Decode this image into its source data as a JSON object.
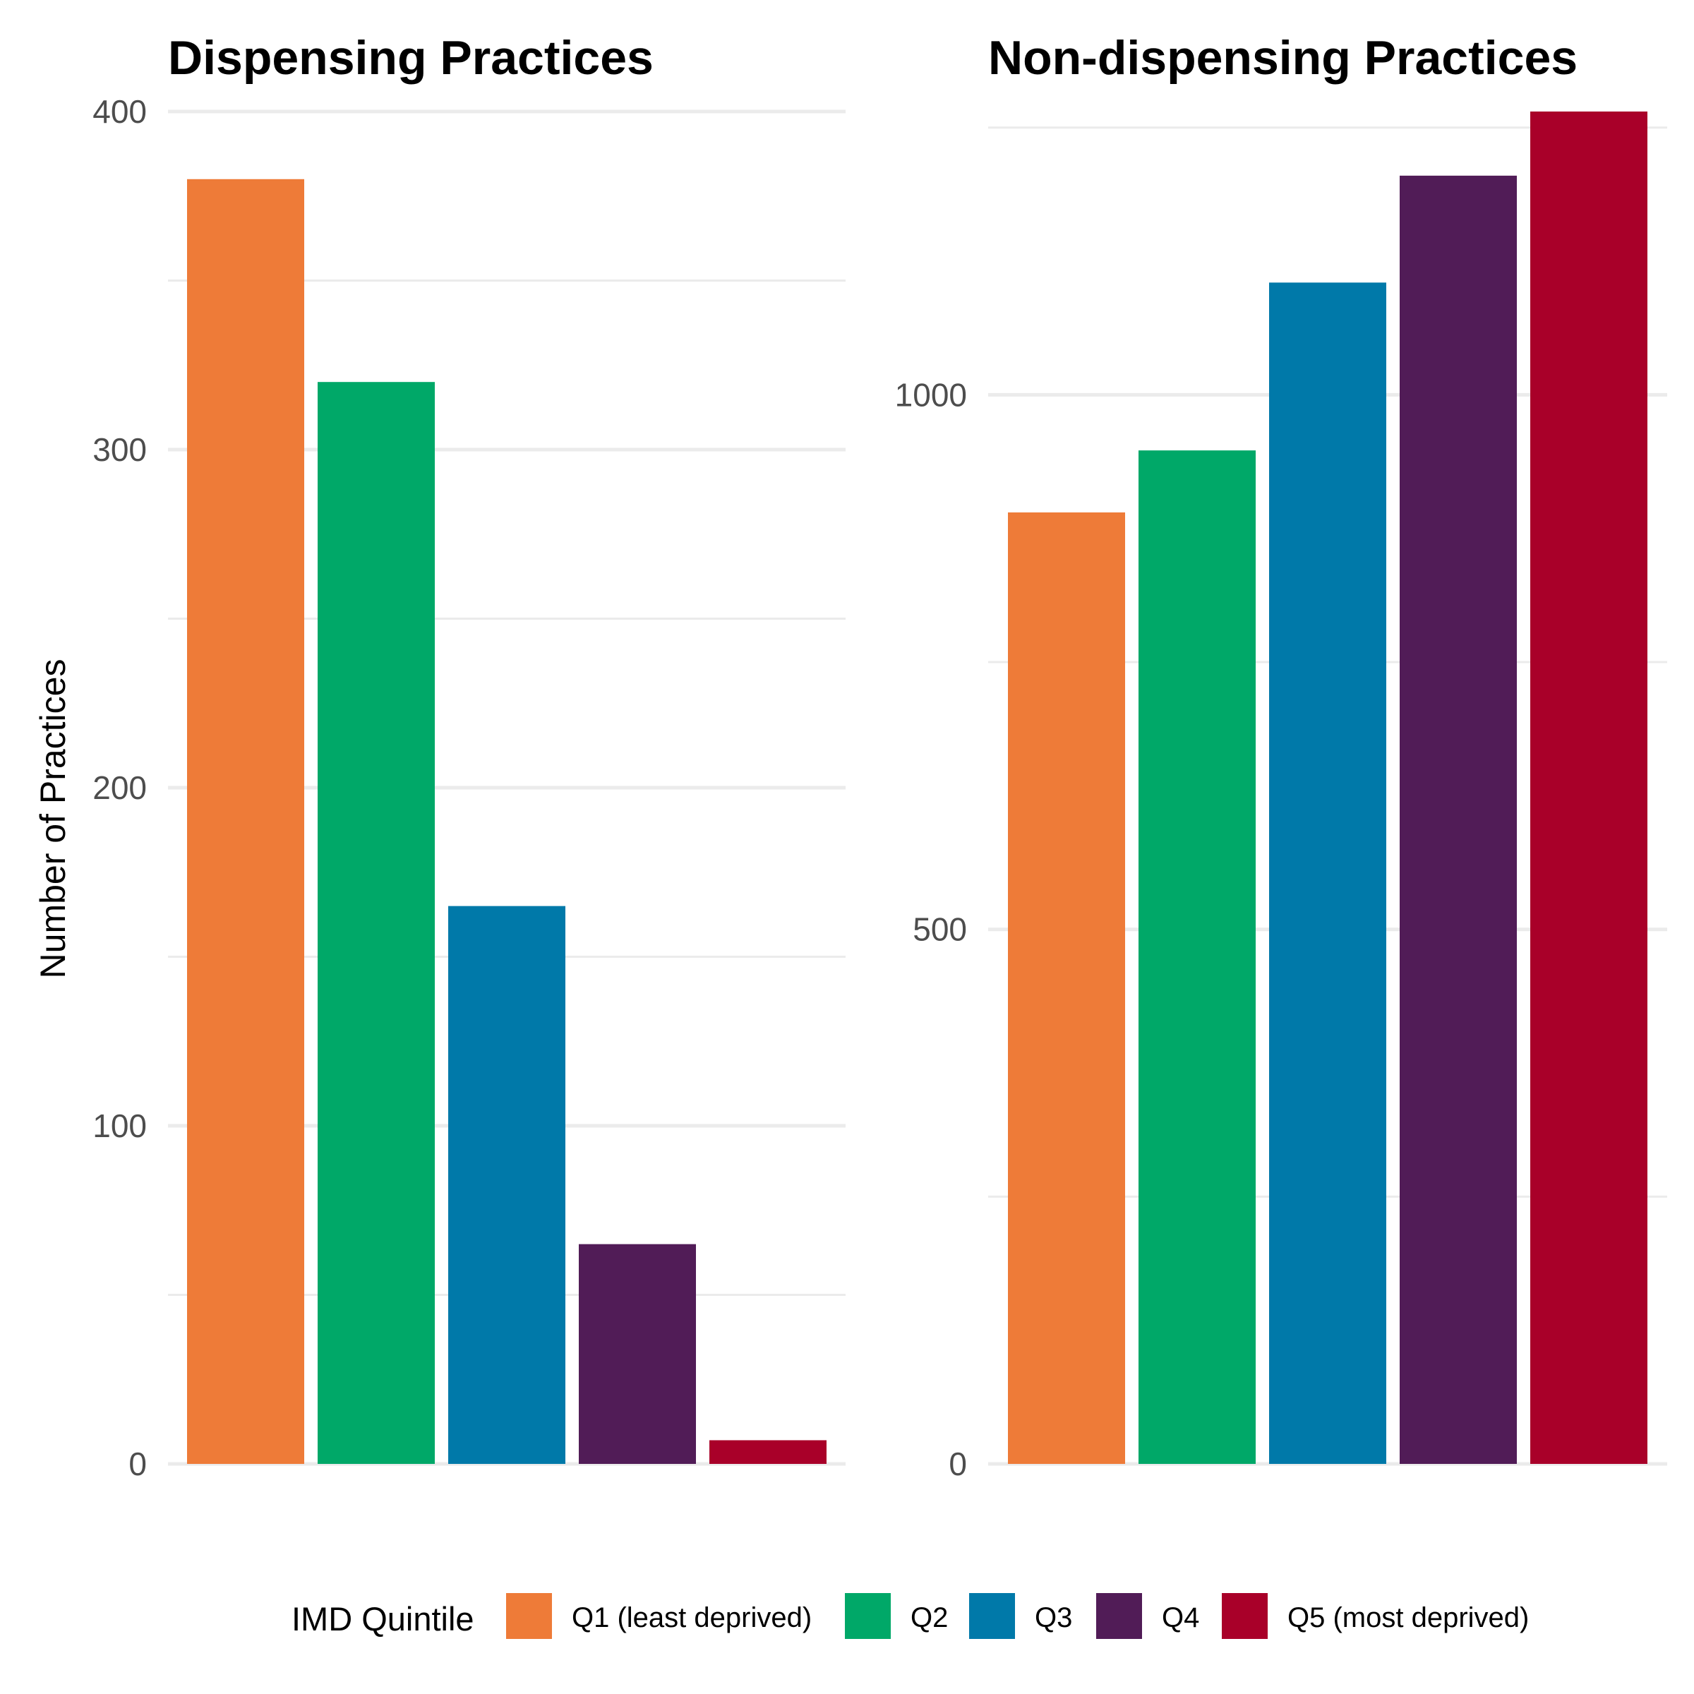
{
  "chart_data": [
    {
      "type": "bar",
      "title": "Dispensing Practices",
      "ylabel": "Number of Practices",
      "xlabel": "",
      "categories": [
        "Q1 (least deprived)",
        "Q2",
        "Q3",
        "Q4",
        "Q5 (most deprived)"
      ],
      "values": [
        380,
        320,
        165,
        65,
        7
      ],
      "ylim": [
        0,
        400
      ],
      "y_ticks": [
        0,
        100,
        200,
        300,
        400
      ],
      "grid": true
    },
    {
      "type": "bar",
      "title": "Non-dispensing Practices",
      "ylabel": "",
      "xlabel": "",
      "categories": [
        "Q1 (least deprived)",
        "Q2",
        "Q3",
        "Q4",
        "Q5 (most deprived)"
      ],
      "values": [
        890,
        948,
        1105,
        1205,
        1265
      ],
      "ylim": [
        0,
        1265
      ],
      "y_ticks": [
        0,
        500,
        1000
      ],
      "grid": true
    }
  ],
  "legend": {
    "title": "IMD Quintile",
    "position": "bottom",
    "items": [
      {
        "label": "Q1 (least deprived)",
        "color": "#EE7B38"
      },
      {
        "label": "Q2",
        "color": "#00A868"
      },
      {
        "label": "Q3",
        "color": "#0079A9"
      },
      {
        "label": "Q4",
        "color": "#511C57"
      },
      {
        "label": "Q5 (most deprived)",
        "color": "#A90029"
      }
    ]
  }
}
